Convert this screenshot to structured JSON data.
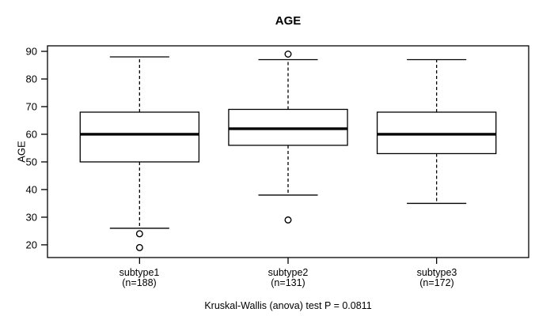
{
  "x_labels": [
    {
      "line1": "subtype1",
      "line2": "(n=188)"
    },
    {
      "line1": "subtype2",
      "line2": "(n=131)"
    },
    {
      "line1": "subtype3",
      "line2": "(n=172)"
    }
  ],
  "chart_data": {
    "type": "boxplot",
    "title": "AGE",
    "ylabel": "AGE",
    "xlabel": "",
    "annotation": "Kruskal-Wallis (anova) test P = 0.0811",
    "ylim": [
      15.4,
      92
    ],
    "xlim": [
      0.38,
      3.62
    ],
    "y_ticks": [
      20,
      30,
      40,
      50,
      60,
      70,
      80,
      90
    ],
    "grid": false,
    "legend": "none",
    "box_width": 0.8,
    "staple_width": 0.4,
    "categories": [
      "subtype1",
      "subtype2",
      "subtype3"
    ],
    "series": [
      {
        "name": "subtype1",
        "n": 188,
        "x": 1,
        "whisker_low": 26,
        "q1": 50,
        "median": 60,
        "q3": 68,
        "whisker_high": 88,
        "outliers": [
          24,
          19
        ]
      },
      {
        "name": "subtype2",
        "n": 131,
        "x": 2,
        "whisker_low": 38,
        "q1": 56,
        "median": 62,
        "q3": 69,
        "whisker_high": 87,
        "outliers": [
          89,
          29
        ]
      },
      {
        "name": "subtype3",
        "n": 172,
        "x": 3,
        "whisker_low": 35,
        "q1": 53,
        "median": 60,
        "q3": 68,
        "whisker_high": 87,
        "outliers": []
      }
    ],
    "colors": {
      "line": "#000000",
      "background": "#ffffff"
    }
  }
}
